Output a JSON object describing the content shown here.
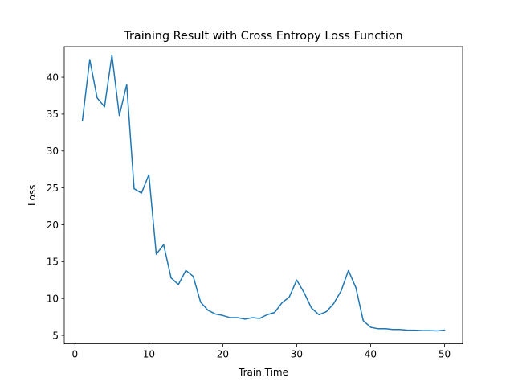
{
  "chart_data": {
    "type": "line",
    "title": "Training Result with Cross Entropy Loss Function",
    "xlabel": "Train Time",
    "ylabel": "Loss",
    "xlim": [
      -1.45,
      52.45
    ],
    "ylim": [
      3.85,
      44.15
    ],
    "xticks": [
      0,
      10,
      20,
      30,
      40,
      50
    ],
    "yticks": [
      5,
      10,
      15,
      20,
      25,
      30,
      35,
      40
    ],
    "grid": false,
    "legend": "none",
    "line_color": "#1f77b4",
    "series": [
      {
        "x": [
          1,
          2,
          3,
          4,
          5,
          6,
          7,
          8,
          9,
          10,
          11,
          12,
          13,
          14,
          15,
          16,
          17,
          18,
          19,
          20,
          21,
          22,
          23,
          24,
          25,
          26,
          27,
          28,
          29,
          30,
          31,
          32,
          33,
          34,
          35,
          36,
          37,
          38,
          39,
          40,
          41,
          42,
          43,
          44,
          45,
          46,
          47,
          48,
          49,
          50
        ],
        "values": [
          34.1,
          42.4,
          37.2,
          36.0,
          43.0,
          34.8,
          39.0,
          24.9,
          24.3,
          26.8,
          16.0,
          17.3,
          12.8,
          11.9,
          13.8,
          13.0,
          9.5,
          8.4,
          7.9,
          7.7,
          7.4,
          7.4,
          7.2,
          7.4,
          7.3,
          7.8,
          8.1,
          9.4,
          10.2,
          12.5,
          10.8,
          8.7,
          7.8,
          8.2,
          9.3,
          11.0,
          13.8,
          11.5,
          7.0,
          6.1,
          5.9,
          5.9,
          5.8,
          5.8,
          5.7,
          5.7,
          5.65,
          5.65,
          5.6,
          5.7
        ]
      }
    ]
  }
}
